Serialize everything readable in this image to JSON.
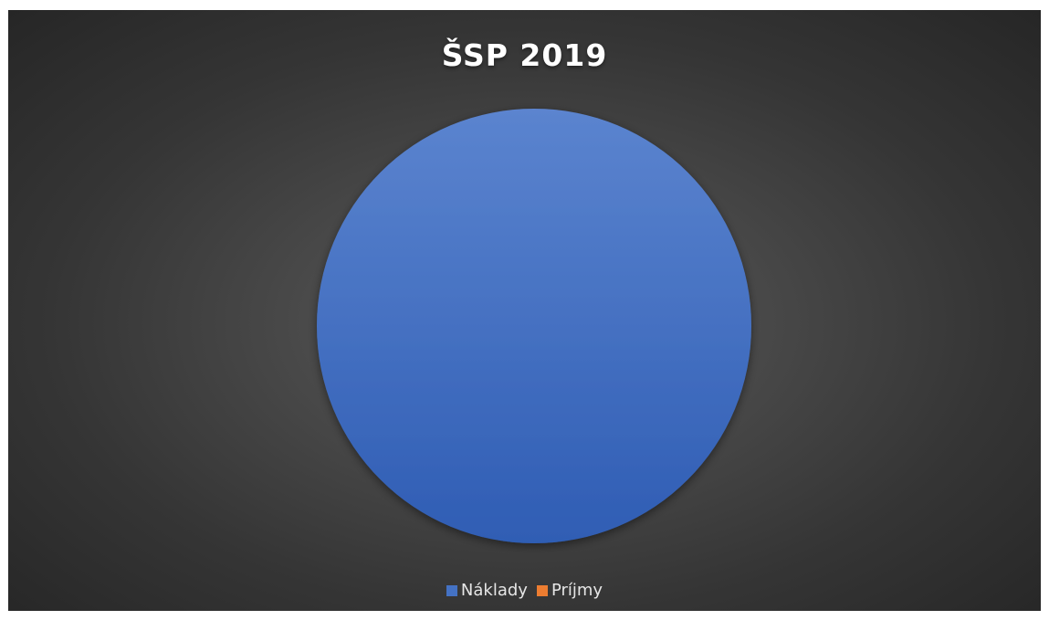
{
  "chart_data": {
    "type": "pie",
    "title": "ŠSP 2019",
    "categories": [
      "Náklady",
      "Príjmy"
    ],
    "values": [
      100,
      0
    ],
    "colors": [
      "#4472c4",
      "#ed7d31"
    ],
    "legend_position": "bottom"
  }
}
